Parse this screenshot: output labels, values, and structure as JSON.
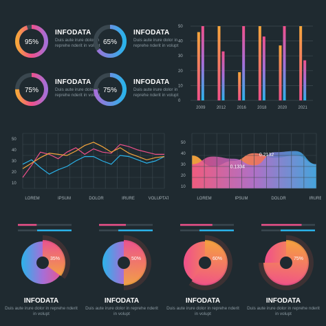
{
  "colors": {
    "background": "#1f2a30",
    "grid": "#3e4a51",
    "track": "#3a474f",
    "pink": "#f0508a",
    "orange": "#f6a63b",
    "blue": "#2ab3ea",
    "purple": "#a56fd8"
  },
  "chart_data": [
    {
      "type": "donut-progress",
      "items": [
        {
          "value": 95,
          "label": "95%",
          "title": "INFODATA",
          "text": "Duis aute irure dolor in reprehe nderit in volupt"
        },
        {
          "value": 65,
          "label": "65%",
          "title": "INFODATA",
          "text": "Duis aute irure dolor in reprehe nderit in volupt"
        },
        {
          "value": 75,
          "label": "75%",
          "title": "INFODATA",
          "text": "Duis aute irure dolor in reprehe nderit in volupt"
        },
        {
          "value": 75,
          "label": "75%",
          "title": "INFODATA",
          "text": "Duis aute irure dolor in reprehe nderit in volupt"
        }
      ]
    },
    {
      "type": "bar",
      "categories": [
        "2009",
        "2012",
        "2016",
        "2018",
        "2020",
        "2021"
      ],
      "yticks": [
        "0",
        "10",
        "20",
        "30",
        "40",
        "50"
      ],
      "ylim": [
        0,
        50
      ],
      "series": [
        {
          "values": [
            46,
            50,
            19,
            50,
            37,
            50
          ]
        },
        {
          "values": [
            50,
            33,
            50,
            43,
            50,
            27
          ]
        }
      ]
    },
    {
      "type": "line",
      "categories": [
        "LOREM",
        "IPSUM",
        "DOLOR",
        "IRURE",
        "VOLUPTATE"
      ],
      "yticks": [
        "10",
        "20",
        "30",
        "40",
        "50"
      ],
      "ylim": [
        5,
        55
      ],
      "x": [
        0,
        0.25,
        0.5,
        0.75,
        1,
        1.25,
        1.5,
        1.75,
        2,
        2.25,
        2.5,
        2.75,
        3,
        3.25,
        3.5,
        3.75,
        4
      ],
      "series": [
        {
          "values": [
            15,
            26,
            38,
            36,
            32,
            38,
            42,
            36,
            41,
            38,
            37,
            45,
            43,
            40,
            38,
            36,
            36
          ]
        },
        {
          "values": [
            27,
            31,
            24,
            18,
            22,
            25,
            30,
            34,
            34,
            30,
            27,
            35,
            34,
            31,
            28,
            30,
            34
          ]
        },
        {
          "values": [
            23,
            28,
            33,
            37,
            36,
            35,
            39,
            44,
            47,
            43,
            38,
            42,
            37,
            34,
            31,
            33,
            34
          ]
        }
      ]
    },
    {
      "type": "area",
      "categories": [
        "LOREM",
        "IPSUM",
        "DOLOR",
        "IRURE"
      ],
      "yticks": [
        "10",
        "20",
        "30",
        "40",
        "50"
      ],
      "ylim": [
        8,
        58
      ],
      "x": [
        0,
        0.5,
        1,
        1.5,
        2,
        2.5,
        3
      ],
      "series": [
        {
          "values": [
            38,
            28,
            33,
            40,
            36,
            38,
            30
          ]
        },
        {
          "values": [
            30,
            37,
            35,
            29,
            41,
            42,
            30
          ]
        }
      ],
      "annotations": [
        {
          "text": "0.2132",
          "x": 1.8,
          "y": 37.5
        },
        {
          "text": "0.1334",
          "x": 1.1,
          "y": 26.5
        }
      ]
    },
    {
      "type": "pie",
      "items": [
        {
          "value": 35,
          "label": "35%",
          "title": "INFODATA",
          "text": "Duis aute irure dolor in reprehe nderit in volupt"
        },
        {
          "value": 50,
          "label": "50%",
          "title": "INFODATA",
          "text": "Duis aute irure dolor in reprehe nderit in volupt"
        },
        {
          "value": 60,
          "label": "60%",
          "title": "INFODATA",
          "text": "Duis aute irure dolor in reprehe nderit in volupt"
        },
        {
          "value": 75,
          "label": "75%",
          "title": "INFODATA",
          "text": "Duis aute irure dolor in reprehe nderit in volupt"
        }
      ]
    }
  ]
}
